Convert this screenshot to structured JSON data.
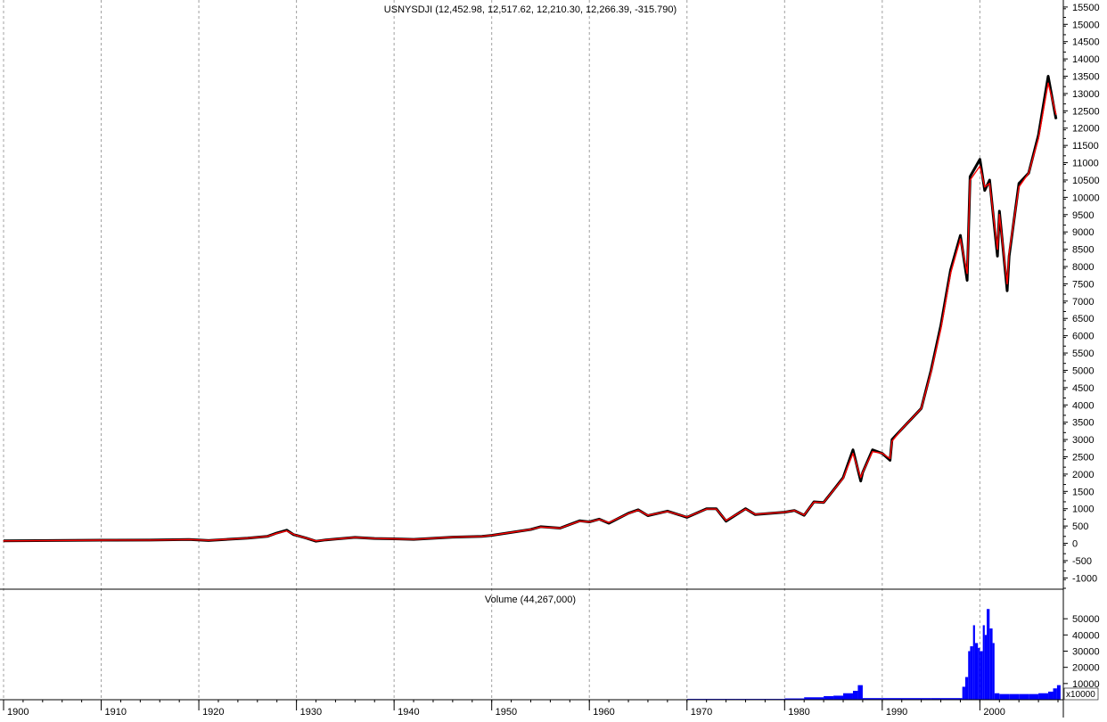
{
  "chart_data": [
    {
      "type": "line",
      "title": "USNYSDJI (12,452.98, 12,517.62, 12,210.30, 12,266.39, -315.790)",
      "ylim": [
        -1300,
        15600
      ],
      "y_ticks": [
        15500,
        15000,
        14500,
        14000,
        13500,
        13000,
        12500,
        12000,
        11500,
        11000,
        10500,
        10000,
        9500,
        9000,
        8500,
        8000,
        7500,
        7000,
        6500,
        6000,
        5500,
        5000,
        4500,
        4000,
        3500,
        3000,
        2500,
        2000,
        1500,
        1000,
        500,
        0,
        -500,
        -1000
      ],
      "grid": "vertical-dashed",
      "series": [
        {
          "color": "#000000",
          "x": [
            1900,
            1905,
            1910,
            1915,
            1919,
            1921,
            1925,
            1927,
            1928,
            1929,
            1929.7,
            1930,
            1931,
            1932,
            1933,
            1936,
            1938,
            1940,
            1942,
            1946,
            1949,
            1950,
            1954,
            1955,
            1957,
            1959,
            1960,
            1961,
            1962,
            1964,
            1965,
            1966,
            1968,
            1970,
            1972,
            1973,
            1974,
            1976,
            1977,
            1980,
            1981,
            1982,
            1983,
            1984,
            1985,
            1986,
            1987,
            1987.8,
            1988,
            1989,
            1990,
            1990.8,
            1991,
            1992,
            1993,
            1994,
            1995,
            1996,
            1997,
            1998,
            1998.7,
            1999,
            2000,
            2000.5,
            2001,
            2001.8,
            2002,
            2002.8,
            2003,
            2004,
            2005,
            2006,
            2007,
            2007.8
          ],
          "y": [
            70,
            80,
            90,
            95,
            110,
            80,
            150,
            200,
            300,
            380,
            250,
            230,
            150,
            60,
            100,
            170,
            140,
            130,
            115,
            180,
            200,
            230,
            400,
            480,
            440,
            650,
            620,
            700,
            580,
            870,
            970,
            800,
            930,
            750,
            1000,
            1000,
            640,
            1000,
            830,
            900,
            950,
            810,
            1200,
            1180,
            1540,
            1900,
            2700,
            1800,
            2050,
            2700,
            2600,
            2400,
            3000,
            3300,
            3600,
            3900,
            5000,
            6300,
            7900,
            8900,
            7600,
            10600,
            11100,
            10200,
            10500,
            8300,
            9600,
            7300,
            8300,
            10400,
            10700,
            11800,
            13500,
            12266
          ]
        },
        {
          "color": "#ff0000",
          "x": [
            1900,
            1905,
            1910,
            1915,
            1919,
            1921,
            1925,
            1927,
            1928,
            1929,
            1929.7,
            1930,
            1931,
            1932,
            1933,
            1936,
            1938,
            1940,
            1942,
            1946,
            1949,
            1950,
            1954,
            1955,
            1957,
            1959,
            1960,
            1961,
            1962,
            1964,
            1965,
            1966,
            1968,
            1970,
            1972,
            1973,
            1974,
            1976,
            1977,
            1980,
            1981,
            1982,
            1983,
            1984,
            1985,
            1986,
            1987,
            1987.8,
            1988,
            1989,
            1990,
            1990.8,
            1991,
            1992,
            1993,
            1994,
            1995,
            1996,
            1997,
            1998,
            1998.7,
            1999,
            2000,
            2000.5,
            2001,
            2001.8,
            2002,
            2002.8,
            2003,
            2004,
            2005,
            2006,
            2007,
            2007.8
          ],
          "y": [
            70,
            80,
            90,
            95,
            110,
            85,
            150,
            200,
            290,
            360,
            260,
            230,
            150,
            70,
            100,
            170,
            140,
            130,
            115,
            180,
            200,
            230,
            400,
            470,
            440,
            640,
            620,
            690,
            600,
            860,
            960,
            810,
            920,
            760,
            990,
            990,
            660,
            990,
            840,
            900,
            950,
            820,
            1190,
            1180,
            1530,
            1880,
            2600,
            1900,
            2050,
            2650,
            2600,
            2450,
            2950,
            3300,
            3600,
            3900,
            4950,
            6200,
            7800,
            8800,
            7800,
            10500,
            10900,
            10300,
            10400,
            8500,
            9500,
            7500,
            8400,
            10300,
            10700,
            11700,
            13300,
            12400
          ]
        }
      ]
    },
    {
      "type": "bar",
      "title": "Volume (44,267,000)",
      "ylim": [
        0,
        60000
      ],
      "y_ticks": [
        50000,
        40000,
        30000,
        20000,
        10000
      ],
      "unit_label": "x10000",
      "color": "#0000ff",
      "x": [
        1970,
        1975,
        1980,
        1982,
        1984,
        1985,
        1986,
        1987,
        1987.5,
        1988,
        1990,
        1995,
        1998.2,
        1998.5,
        1998.8,
        1999,
        1999.3,
        1999.5,
        1999.8,
        2000,
        2000.3,
        2000.5,
        2000.7,
        2001,
        2001.3,
        2001.5,
        2002,
        2003,
        2004,
        2005,
        2006,
        2007,
        2007.5,
        2007.9
      ],
      "values": [
        500,
        500,
        800,
        1500,
        2200,
        2500,
        4000,
        5500,
        9000,
        1000,
        1000,
        1000,
        8000,
        14000,
        30000,
        33000,
        46000,
        35000,
        32000,
        30000,
        46000,
        40000,
        56000,
        44000,
        35000,
        4000,
        3500,
        3500,
        3500,
        3500,
        4000,
        5000,
        7000,
        9000
      ]
    }
  ],
  "x_axis": {
    "ticks": [
      1900,
      1910,
      1920,
      1930,
      1940,
      1950,
      1960,
      1970,
      1980,
      1990,
      2000
    ],
    "labels": [
      "1900",
      "1910",
      "1920",
      "1930",
      "1940",
      "1950",
      "1960",
      "1970",
      "1980",
      "1990",
      "2000"
    ]
  },
  "colors": {
    "price": "#000000",
    "average": "#ff0000",
    "volume": "#0000ff",
    "grid": "#a0a0a0"
  }
}
